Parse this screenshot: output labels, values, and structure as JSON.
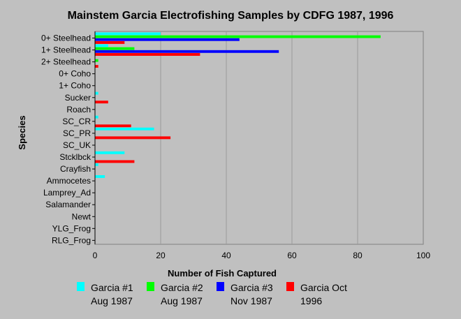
{
  "chart_data": {
    "type": "bar",
    "orientation": "horizontal",
    "title": "Mainstem Garcia Electrofishing Samples by CDFG 1987, 1996",
    "xlabel": "Number of Fish Captured",
    "ylabel": "Species",
    "xlim": [
      0,
      100
    ],
    "xticks": [
      "0",
      "20",
      "40",
      "60",
      "80",
      "100"
    ],
    "grid": "vertical",
    "legend_position": "bottom",
    "categories": [
      "0+ Steelhead",
      "1+ Steelhead",
      "2+ Steelhead",
      "0+ Coho",
      "1+ Coho",
      "Sucker",
      "Roach",
      "SC_CR",
      "SC_PR",
      "SC_UK",
      "Stcklbck",
      "Crayfish",
      "Ammocetes",
      "Lamprey_Ad",
      "Salamander",
      "Newt",
      "YLG_Frog",
      "RLG_Frog"
    ],
    "series": [
      {
        "name": "Garcia #1 Aug 1987",
        "label_lines": [
          "Garcia #1",
          "Aug 1987"
        ],
        "color": "#00ffff",
        "values": [
          20,
          4,
          0,
          0,
          0,
          1,
          0,
          1,
          18,
          0,
          9,
          1,
          3,
          0,
          0,
          0,
          0,
          0
        ]
      },
      {
        "name": "Garcia #2 Aug 1987",
        "label_lines": [
          "Garcia #2",
          "Aug 1987"
        ],
        "color": "#00ff00",
        "values": [
          87,
          12,
          1,
          0,
          0,
          0,
          0,
          0,
          0,
          0,
          0,
          0,
          0,
          0,
          0,
          0,
          0,
          0
        ]
      },
      {
        "name": "Garcia #3 Nov 1987",
        "label_lines": [
          "Garcia #3",
          "Nov 1987"
        ],
        "color": "#0000ff",
        "values": [
          44,
          56,
          0,
          0,
          0,
          0,
          0,
          0,
          0,
          0,
          0,
          0,
          0,
          0,
          0,
          0,
          0,
          0
        ]
      },
      {
        "name": "Garcia Oct 1996",
        "label_lines": [
          "Garcia Oct",
          "1996"
        ],
        "color": "#ff0000",
        "values": [
          9,
          32,
          1,
          0,
          0,
          4,
          0,
          11,
          23,
          0,
          12,
          0,
          0,
          0,
          0,
          0,
          0,
          0
        ]
      }
    ]
  }
}
